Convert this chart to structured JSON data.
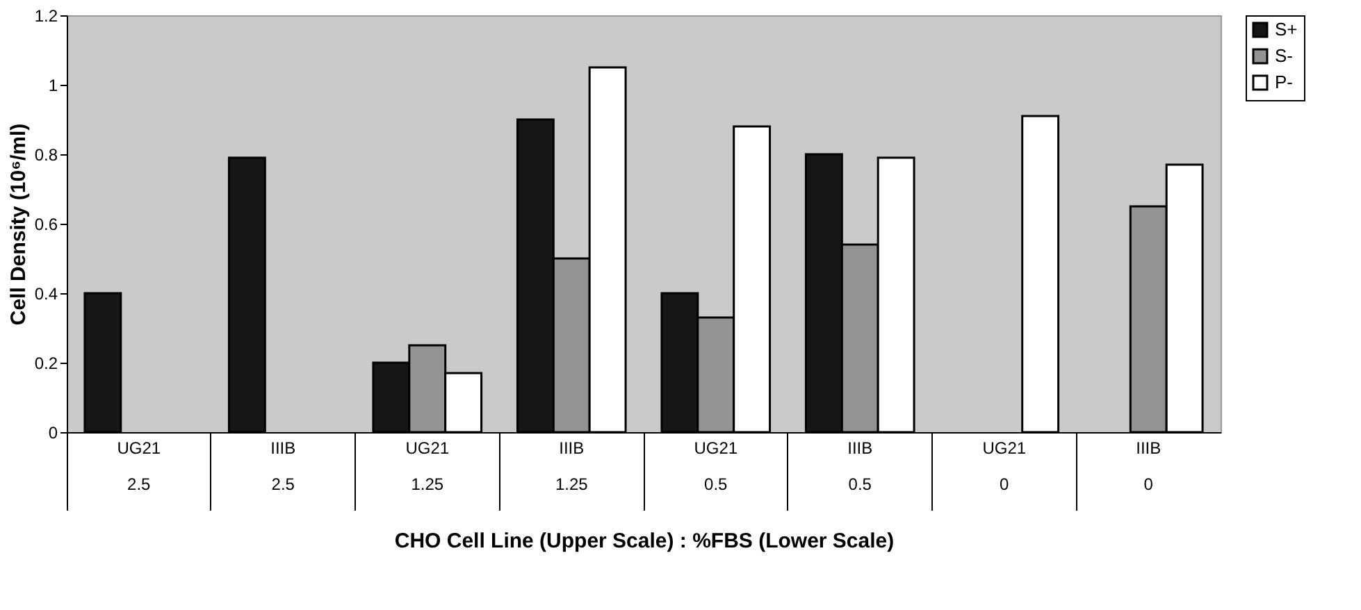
{
  "chart_data": {
    "type": "bar",
    "xlabel": "CHO Cell Line (Upper Scale) : %FBS (Lower Scale)",
    "ylabel": "Cell Density (10⁶/ml)",
    "categories": [
      "UG21\n2.5",
      "IIIB\n2.5",
      "UG21\n1.25",
      "IIIB\n1.25",
      "UG21\n0.5",
      "IIIB\n0.5",
      "UG21\n0",
      "IIIB\n0"
    ],
    "series": [
      {
        "name": "S+",
        "color": "#161616",
        "values": [
          0.4,
          0.79,
          0.2,
          0.9,
          0.4,
          0.8,
          null,
          null
        ]
      },
      {
        "name": "S-",
        "color": "#939393",
        "values": [
          null,
          null,
          0.25,
          0.5,
          0.33,
          0.54,
          null,
          0.65
        ]
      },
      {
        "name": "P-",
        "color": "#ffffff",
        "values": [
          null,
          null,
          0.17,
          1.05,
          0.88,
          0.79,
          0.91,
          0.77
        ]
      }
    ],
    "ylim": [
      0,
      1.2
    ],
    "yticks": [
      0,
      0.2,
      0.4,
      0.6,
      0.8,
      1,
      1.2
    ],
    "grid": false,
    "legend": "right"
  }
}
